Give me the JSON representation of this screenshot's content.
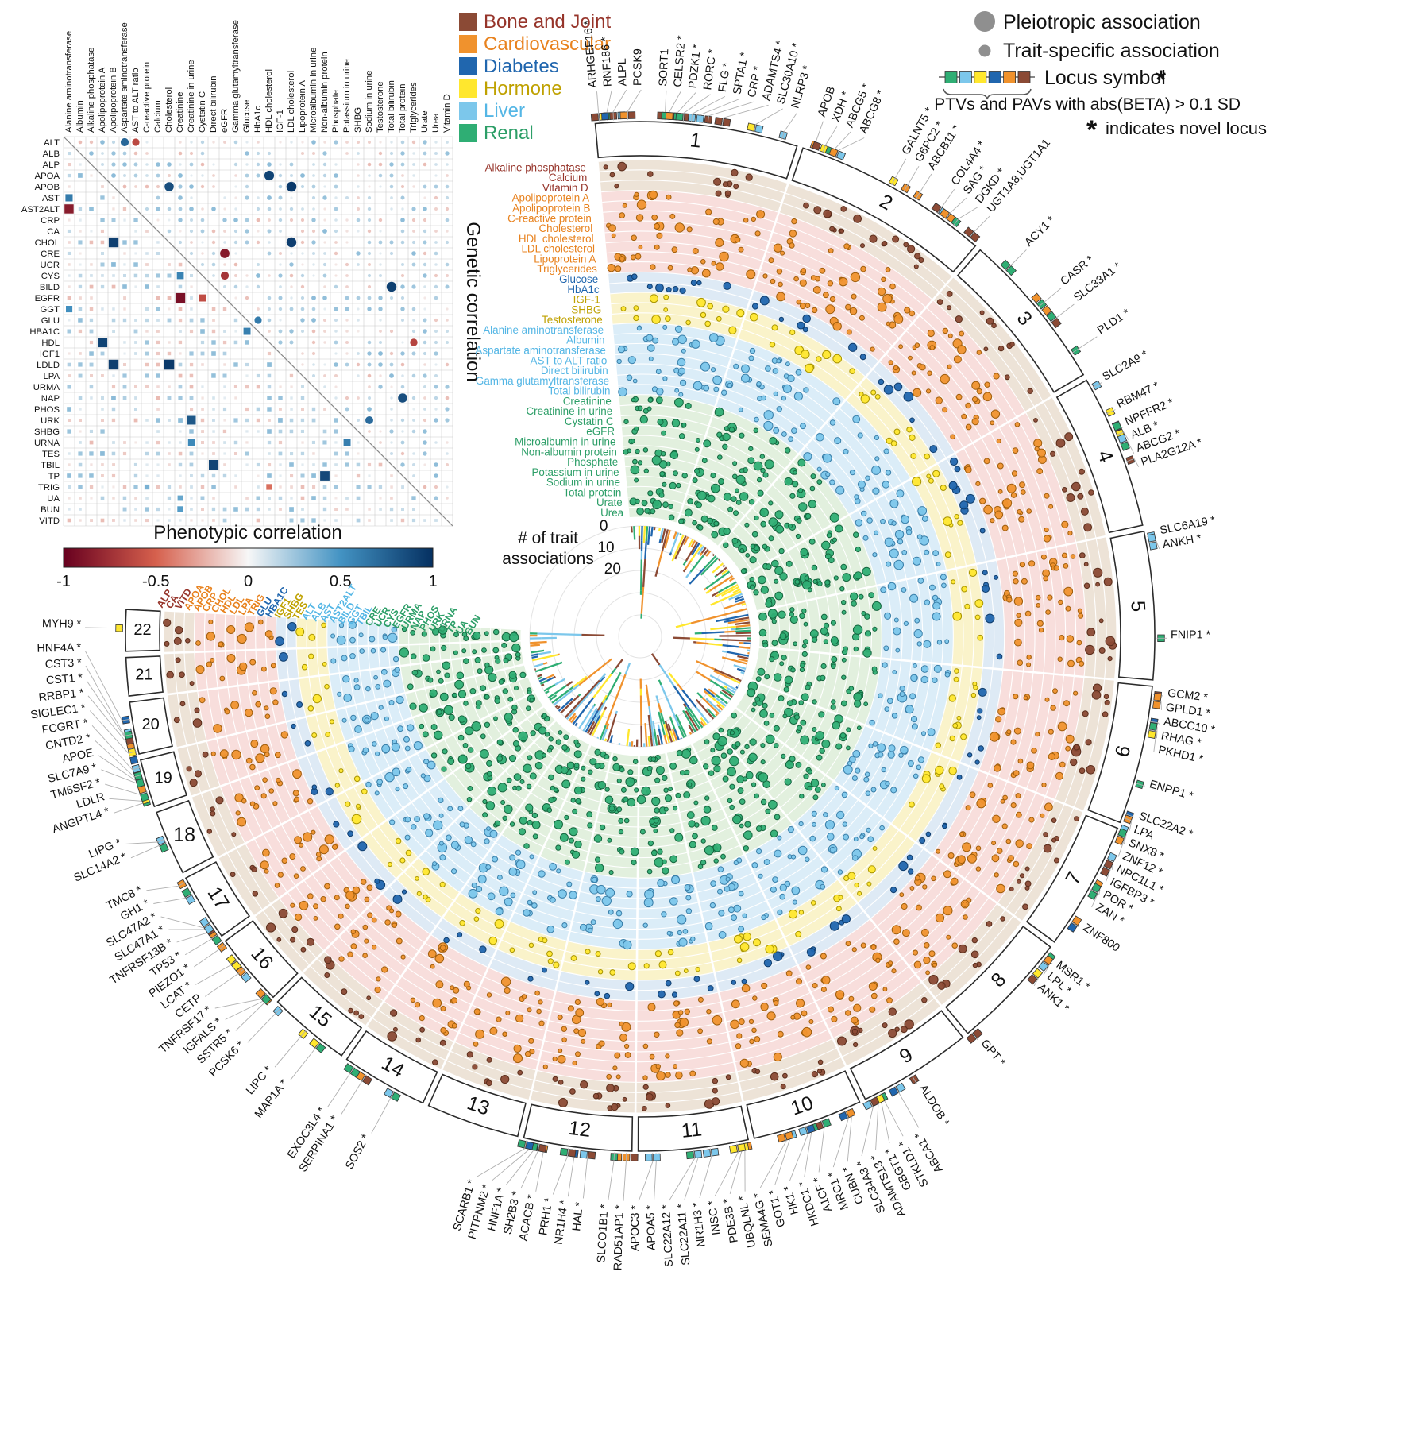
{
  "legend": {
    "pleiotropic": "Pleiotropic association",
    "trait_specific": "Trait-specific association",
    "locus_symbol": "Locus symbol",
    "star": "*",
    "ptv_note": "PTVs and PAVs with abs(BETA) > 0.1 SD",
    "novel_note": "indicates novel locus"
  },
  "chart_data": {
    "type": "circos",
    "categories": [
      {
        "name": "Bone and Joint",
        "color": "#8B4A35",
        "band": "#EDE3D7",
        "stroke": "#5C2E1C",
        "text": "#96342A"
      },
      {
        "name": "Cardiovascular",
        "color": "#F0922D",
        "band": "#F8DEDC",
        "stroke": "#A05E0C",
        "text": "#E8821E"
      },
      {
        "name": "Diabetes",
        "color": "#2066AE",
        "band": "#DEEAF5",
        "stroke": "#103E6E",
        "text": "#2066AE"
      },
      {
        "name": "Hormone",
        "color": "#FFE72E",
        "band": "#FAF3CA",
        "stroke": "#A99500",
        "text": "#BFA100"
      },
      {
        "name": "Liver",
        "color": "#7CC7EB",
        "band": "#DBEDF8",
        "stroke": "#3A7FA9",
        "text": "#54B6E5"
      },
      {
        "name": "Renal",
        "color": "#2FAE74",
        "band": "#E2F0DE",
        "stroke": "#15663F",
        "text": "#2C9E67"
      }
    ],
    "traits": [
      [
        "Alkaline phosphatase",
        "ALP",
        0
      ],
      [
        "Calcium",
        "CA",
        0
      ],
      [
        "Vitamin D",
        "VITD",
        0
      ],
      [
        "Apolipoprotein A",
        "APOA",
        1
      ],
      [
        "Apolipoprotein B",
        "APOB",
        1
      ],
      [
        "C-reactive protein",
        "CRP",
        1
      ],
      [
        "Cholesterol",
        "CHOL",
        1
      ],
      [
        "HDL cholesterol",
        "HDL",
        1
      ],
      [
        "LDL cholesterol",
        "LDL",
        1
      ],
      [
        "Lipoprotein A",
        "LPA",
        1
      ],
      [
        "Triglycerides",
        "TRIG",
        1
      ],
      [
        "Glucose",
        "GLU",
        2
      ],
      [
        "HbA1c",
        "HBA1C",
        2
      ],
      [
        "IGF-1",
        "IGF1",
        3
      ],
      [
        "SHBG",
        "SHBG",
        3
      ],
      [
        "Testosterone",
        "TES",
        3
      ],
      [
        "Alanine aminotransferase",
        "ALT",
        4
      ],
      [
        "Albumin",
        "ALB",
        4
      ],
      [
        "Aspartate aminotransferase",
        "AST",
        4
      ],
      [
        "AST to ALT ratio",
        "AST2ALT",
        4
      ],
      [
        "Direct bilirubin",
        "BILD",
        4
      ],
      [
        "Gamma glutamyltransferase",
        "GGT",
        4
      ],
      [
        "Total bilirubin",
        "TBIL",
        4
      ],
      [
        "Creatinine",
        "CRE",
        5
      ],
      [
        "Creatinine in urine",
        "UCR",
        5
      ],
      [
        "Cystatin C",
        "CYS",
        5
      ],
      [
        "eGFR",
        "EGFR",
        5
      ],
      [
        "Microalbumin in urine",
        "URMA",
        5
      ],
      [
        "Non-albumin protein",
        "NAP",
        5
      ],
      [
        "Phosphate",
        "PHOS",
        5
      ],
      [
        "Potassium in urine",
        "URK",
        5
      ],
      [
        "Sodium in urine",
        "URNA",
        5
      ],
      [
        "Total protein",
        "TP",
        5
      ],
      [
        "Urate",
        "UA",
        5
      ],
      [
        "Urea",
        "BUN",
        5
      ]
    ],
    "chromosomes": [
      {
        "label": "1",
        "size": 249
      },
      {
        "label": "2",
        "size": 243
      },
      {
        "label": "3",
        "size": 198
      },
      {
        "label": "4",
        "size": 190
      },
      {
        "label": "5",
        "size": 182
      },
      {
        "label": "6",
        "size": 171
      },
      {
        "label": "7",
        "size": 159
      },
      {
        "label": "8",
        "size": 146
      },
      {
        "label": "9",
        "size": 141
      },
      {
        "label": "10",
        "size": 136
      },
      {
        "label": "11",
        "size": 135
      },
      {
        "label": "12",
        "size": 133
      },
      {
        "label": "13",
        "size": 115
      },
      {
        "label": "14",
        "size": 107
      },
      {
        "label": "15",
        "size": 102
      },
      {
        "label": "16",
        "size": 90
      },
      {
        "label": "17",
        "size": 83
      },
      {
        "label": "18",
        "size": 80
      },
      {
        "label": "19",
        "size": 59
      },
      {
        "label": "20",
        "size": 64
      },
      {
        "label": "21",
        "size": 47
      },
      {
        "label": "22",
        "size": 51
      }
    ],
    "genes": [
      [
        1,
        0.02,
        "ARHGEF16",
        1
      ],
      [
        1,
        0.06,
        "RNF186",
        1
      ],
      [
        1,
        0.09,
        "ALPL",
        0
      ],
      [
        1,
        0.16,
        "PCSK9",
        0
      ],
      [
        1,
        0.34,
        "SORT1",
        0
      ],
      [
        1,
        0.36,
        "CELSR2",
        1
      ],
      [
        1,
        0.4,
        "PDZK1",
        1
      ],
      [
        1,
        0.43,
        "RORC",
        1
      ],
      [
        1,
        0.47,
        "FLG",
        1
      ],
      [
        1,
        0.51,
        "SPTA1",
        1
      ],
      [
        1,
        0.55,
        "CRP",
        1
      ],
      [
        1,
        0.62,
        "ADAMTS4",
        1
      ],
      [
        1,
        0.78,
        "SLC30A10",
        1
      ],
      [
        1,
        0.92,
        "NLRP3",
        1
      ],
      [
        2,
        0.05,
        "APOB",
        0
      ],
      [
        2,
        0.1,
        "XDH",
        1
      ],
      [
        2,
        0.15,
        "ABCG5",
        1
      ],
      [
        2,
        0.17,
        "ABCG8",
        1
      ],
      [
        2,
        0.48,
        "GALNT5",
        1
      ],
      [
        2,
        0.55,
        "G6PC2",
        1
      ],
      [
        2,
        0.62,
        "ABCB11",
        1
      ],
      [
        2,
        0.75,
        "COL4A4",
        1
      ],
      [
        2,
        0.8,
        "SAG",
        1
      ],
      [
        2,
        0.85,
        "DGKD",
        1
      ],
      [
        2,
        0.95,
        "UGT1A8,UGT1A1",
        0
      ],
      [
        3,
        0.2,
        "ACY1",
        1
      ],
      [
        3,
        0.5,
        "CASR",
        1
      ],
      [
        3,
        0.62,
        "SLC33A1",
        1
      ],
      [
        3,
        0.85,
        "PLD1",
        1
      ],
      [
        4,
        0.06,
        "SLC2A9",
        1
      ],
      [
        4,
        0.25,
        "RBM47",
        1
      ],
      [
        4,
        0.37,
        "NPFFR2",
        1
      ],
      [
        4,
        0.4,
        "ALB",
        1
      ],
      [
        4,
        0.46,
        "ABCG2",
        1
      ],
      [
        4,
        0.58,
        "PLA2G12A",
        1
      ],
      [
        5,
        0.04,
        "SLC6A19",
        1
      ],
      [
        5,
        0.08,
        "ANKH",
        1
      ],
      [
        5,
        0.72,
        "FNIP1",
        1
      ],
      [
        6,
        0.06,
        "GCM2",
        1
      ],
      [
        6,
        0.1,
        "GPLD1",
        1
      ],
      [
        6,
        0.25,
        "ABCC10",
        1
      ],
      [
        6,
        0.28,
        "RHAG",
        1
      ],
      [
        6,
        0.31,
        "PKHD1",
        1
      ],
      [
        6,
        0.7,
        "ENPP1",
        1
      ],
      [
        6,
        0.93,
        "SLC22A2",
        1
      ],
      [
        6,
        0.96,
        "LPA",
        0
      ],
      [
        7,
        0.02,
        "SNX8",
        1
      ],
      [
        7,
        0.05,
        "ZNF12",
        1
      ],
      [
        7,
        0.28,
        "NPC1L1",
        1
      ],
      [
        7,
        0.31,
        "IGFBP3",
        1
      ],
      [
        7,
        0.48,
        "POR",
        1
      ],
      [
        7,
        0.51,
        "ZAN",
        1
      ],
      [
        7,
        0.8,
        "ZNF800",
        0
      ],
      [
        8,
        0.1,
        "MSR1",
        1
      ],
      [
        8,
        0.13,
        "LPL",
        1
      ],
      [
        8,
        0.27,
        "ANK1",
        1
      ],
      [
        8,
        0.97,
        "GPT",
        1
      ],
      [
        9,
        0.55,
        "ALDOB",
        1
      ],
      [
        9,
        0.72,
        "ABCA1",
        1
      ],
      [
        9,
        0.86,
        "STKLD1",
        1
      ],
      [
        9,
        0.89,
        "GBGT1",
        1
      ],
      [
        9,
        0.92,
        "ADAMTS13",
        1
      ],
      [
        9,
        0.97,
        "SLC34A3",
        1
      ],
      [
        10,
        0.12,
        "CUBN",
        1
      ],
      [
        10,
        0.15,
        "MRC1",
        1
      ],
      [
        10,
        0.38,
        "A1CF",
        1
      ],
      [
        10,
        0.5,
        "HKDC1",
        1
      ],
      [
        10,
        0.53,
        "HK1",
        1
      ],
      [
        10,
        0.7,
        "GOT1",
        1
      ],
      [
        10,
        0.73,
        "SEMA4G",
        1
      ],
      [
        11,
        0.05,
        "UBQLNL",
        1
      ],
      [
        11,
        0.08,
        "PDE3B",
        1
      ],
      [
        11,
        0.11,
        "INSC",
        1
      ],
      [
        11,
        0.35,
        "NR1H3",
        1
      ],
      [
        11,
        0.47,
        "SLC22A11",
        1
      ],
      [
        11,
        0.5,
        "SLC22A12",
        1
      ],
      [
        11,
        0.84,
        "APOA5",
        1
      ],
      [
        11,
        0.87,
        "APOC3",
        1
      ],
      [
        12,
        0.05,
        "RAD51AP1",
        1
      ],
      [
        12,
        0.16,
        "SLCO1B1",
        1
      ],
      [
        12,
        0.4,
        "HAL",
        1
      ],
      [
        12,
        0.52,
        "NR1H4",
        1
      ],
      [
        12,
        0.58,
        "PRH1",
        1
      ],
      [
        12,
        0.8,
        "ACACB",
        1
      ],
      [
        12,
        0.85,
        "SH2B3",
        1
      ],
      [
        12,
        0.89,
        "HNF1A",
        1
      ],
      [
        12,
        0.93,
        "PITPNM2",
        1
      ],
      [
        12,
        0.97,
        "SCARB1",
        1
      ],
      [
        14,
        0.35,
        "SOS2",
        1
      ],
      [
        14,
        0.72,
        "SERPINA1",
        1
      ],
      [
        14,
        0.88,
        "EXOC3L4",
        1
      ],
      [
        15,
        0.3,
        "MAP1A",
        1
      ],
      [
        15,
        0.52,
        "LIPC",
        1
      ],
      [
        15,
        0.92,
        "PCSK6",
        1
      ],
      [
        16,
        0.03,
        "SSTR5",
        1
      ],
      [
        16,
        0.06,
        "IGFALS",
        1
      ],
      [
        16,
        0.1,
        "TNFRSF17",
        1
      ],
      [
        16,
        0.55,
        "CETP",
        0
      ],
      [
        16,
        0.7,
        "LCAT",
        1
      ],
      [
        16,
        0.96,
        "PIEZO1",
        1
      ],
      [
        17,
        0.05,
        "TP53",
        1
      ],
      [
        17,
        0.16,
        "TNFRSF13B",
        1
      ],
      [
        17,
        0.22,
        "SLC47A1",
        1
      ],
      [
        17,
        0.25,
        "SLC47A2",
        1
      ],
      [
        17,
        0.75,
        "GH1",
        1
      ],
      [
        17,
        0.95,
        "TMC8",
        1
      ],
      [
        18,
        0.52,
        "SLC14A2",
        1
      ],
      [
        18,
        0.58,
        "LIPG",
        1
      ],
      [
        19,
        0.14,
        "ANGPTL4",
        1
      ],
      [
        19,
        0.19,
        "LDLR",
        0
      ],
      [
        19,
        0.33,
        "TM6SF2",
        1
      ],
      [
        19,
        0.57,
        "SLC7A9",
        1
      ],
      [
        19,
        0.63,
        "APOE",
        0
      ],
      [
        19,
        0.7,
        "CNTD2",
        1
      ],
      [
        19,
        0.85,
        "FCGRT",
        1
      ],
      [
        20,
        0.06,
        "SIGLEC1",
        1
      ],
      [
        20,
        0.28,
        "RRBP1",
        1
      ],
      [
        20,
        0.36,
        "CST1",
        1
      ],
      [
        20,
        0.39,
        "CST3",
        1
      ],
      [
        20,
        0.68,
        "HNF4A",
        1
      ],
      [
        22,
        0.55,
        "MYH9",
        1
      ]
    ],
    "inner_axis": {
      "title_line1": "# of trait",
      "title_line2": "associations",
      "ticks": [
        "0",
        "10",
        "20"
      ]
    },
    "matrix": {
      "row_labels": [
        "ALT",
        "ALB",
        "ALP",
        "APOA",
        "APOB",
        "AST",
        "AST2ALT",
        "CRP",
        "CA",
        "CHOL",
        "CRE",
        "UCR",
        "CYS",
        "BILD",
        "EGFR",
        "GGT",
        "GLU",
        "HBA1C",
        "HDL",
        "IGF1",
        "LDLD",
        "LPA",
        "URMA",
        "NAP",
        "PHOS",
        "URK",
        "SHBG",
        "URNA",
        "TES",
        "TBIL",
        "TP",
        "TRIG",
        "UA",
        "BUN",
        "VITD"
      ],
      "col_labels": [
        "Alanine aminotransferase",
        "Albumin",
        "Alkaline phosphatase",
        "Apolipoprotein A",
        "Apolipoprotein B",
        "Aspartate aminotransferase",
        "AST to ALT ratio",
        "C-reactive protein",
        "Calcium",
        "Cholesterol",
        "Creatinine",
        "Creatinine in urine",
        "Cystatin C",
        "Direct bilirubin",
        "eGFR",
        "Gamma glutamyltransferase",
        "Glucose",
        "HbA1c",
        "HDL cholesterol",
        "IGF-1",
        "LDL cholesterol",
        "Lipoprotein A",
        "Microalbumin in urine",
        "Non-albumin protein",
        "Phosphate",
        "Potassium in urine",
        "SHBG",
        "Sodium in urine",
        "Testosterone",
        "Total bilirubin",
        "Total protein",
        "Triglycerides",
        "Urate",
        "Urea",
        "Vitamin D"
      ],
      "upper_triangle_label": "Genetic correlation",
      "colorbar": {
        "title": "Phenotypic correlation",
        "ticks": [
          "-1",
          "-0.5",
          "0",
          "0.5",
          "1"
        ]
      },
      "notable_upper": [
        [
          0,
          5,
          0.72
        ],
        [
          0,
          6,
          -0.62
        ],
        [
          3,
          18,
          0.9
        ],
        [
          4,
          9,
          0.85
        ],
        [
          4,
          20,
          0.95
        ],
        [
          9,
          20,
          0.93
        ],
        [
          10,
          14,
          -0.86
        ],
        [
          12,
          14,
          -0.72
        ],
        [
          13,
          29,
          0.92
        ],
        [
          16,
          17,
          0.62
        ],
        [
          18,
          31,
          -0.65
        ],
        [
          23,
          30,
          0.85
        ],
        [
          25,
          27,
          0.7
        ]
      ],
      "notable_lower": [
        [
          5,
          0,
          0.62
        ],
        [
          6,
          0,
          -0.85
        ],
        [
          9,
          4,
          0.92
        ],
        [
          12,
          10,
          0.58
        ],
        [
          14,
          10,
          -0.92
        ],
        [
          14,
          12,
          -0.6
        ],
        [
          15,
          0,
          0.52
        ],
        [
          17,
          16,
          0.6
        ],
        [
          18,
          3,
          0.9
        ],
        [
          20,
          4,
          0.93
        ],
        [
          20,
          9,
          0.95
        ],
        [
          25,
          11,
          0.8
        ],
        [
          27,
          11,
          0.55
        ],
        [
          27,
          25,
          0.6
        ],
        [
          29,
          13,
          0.9
        ],
        [
          30,
          23,
          0.88
        ],
        [
          31,
          7,
          0.35
        ],
        [
          31,
          18,
          -0.45
        ],
        [
          32,
          10,
          0.4
        ],
        [
          33,
          10,
          0.45
        ]
      ]
    }
  }
}
